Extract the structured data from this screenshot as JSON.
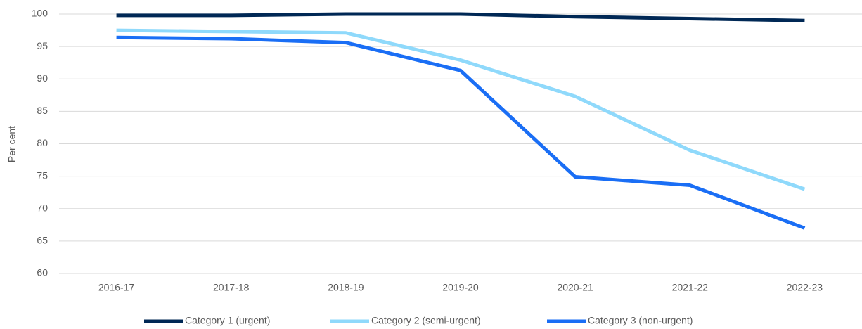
{
  "chart_data": {
    "type": "line",
    "y_label": "Per cent",
    "categories": [
      "2016-17",
      "2017-18",
      "2018-19",
      "2019-20",
      "2020-21",
      "2021-22",
      "2022-23"
    ],
    "series": [
      {
        "name": "Category 1 (urgent)",
        "color": "#002855",
        "values": [
          99.8,
          99.8,
          100,
          100,
          99.6,
          99.3,
          99.0
        ]
      },
      {
        "name": "Category 2 (semi-urgent)",
        "color": "#8fd9fb",
        "values": [
          97.5,
          97.3,
          97.1,
          92.9,
          87.3,
          79.0,
          73.0
        ]
      },
      {
        "name": "Category 3 (non-urgent)",
        "color": "#1a6ef5",
        "values": [
          96.4,
          96.2,
          95.6,
          91.3,
          74.9,
          73.6,
          67.0
        ]
      }
    ],
    "ylim": [
      60,
      100
    ],
    "yticks": [
      60,
      65,
      70,
      75,
      80,
      85,
      90,
      95,
      100
    ],
    "grid": true,
    "legend": "bottom"
  }
}
